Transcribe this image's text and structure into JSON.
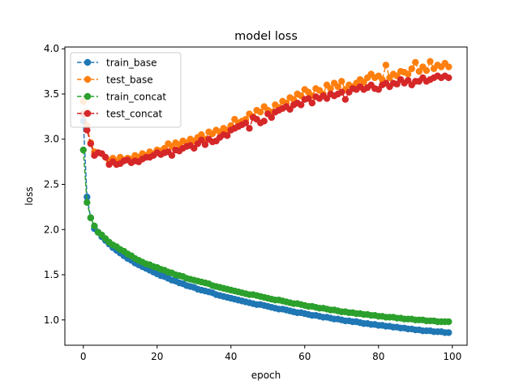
{
  "chart_data": {
    "type": "line",
    "title": "model loss",
    "xlabel": "epoch",
    "ylabel": "loss",
    "xlim": [
      -5,
      104
    ],
    "ylim": [
      0.72,
      4.02
    ],
    "xticks": [
      0,
      20,
      40,
      60,
      80,
      100
    ],
    "yticks": [
      1.0,
      1.5,
      2.0,
      2.5,
      3.0,
      3.5,
      4.0
    ],
    "legend_position": "upper-left",
    "grid": false,
    "x": [
      0,
      1,
      2,
      3,
      4,
      5,
      6,
      7,
      8,
      9,
      10,
      11,
      12,
      13,
      14,
      15,
      16,
      17,
      18,
      19,
      20,
      21,
      22,
      23,
      24,
      25,
      26,
      27,
      28,
      29,
      30,
      31,
      32,
      33,
      34,
      35,
      36,
      37,
      38,
      39,
      40,
      41,
      42,
      43,
      44,
      45,
      46,
      47,
      48,
      49,
      50,
      51,
      52,
      53,
      54,
      55,
      56,
      57,
      58,
      59,
      60,
      61,
      62,
      63,
      64,
      65,
      66,
      67,
      68,
      69,
      70,
      71,
      72,
      73,
      74,
      75,
      76,
      77,
      78,
      79,
      80,
      81,
      82,
      83,
      84,
      85,
      86,
      87,
      88,
      89,
      90,
      91,
      92,
      93,
      94,
      95,
      96,
      97,
      98,
      99
    ],
    "series": [
      {
        "name": "train_base",
        "color": "#1f77b4",
        "values": [
          3.2,
          2.36,
          2.13,
          2.01,
          1.97,
          1.92,
          1.88,
          1.84,
          1.8,
          1.77,
          1.74,
          1.71,
          1.68,
          1.66,
          1.63,
          1.61,
          1.59,
          1.57,
          1.55,
          1.53,
          1.51,
          1.49,
          1.48,
          1.46,
          1.44,
          1.43,
          1.41,
          1.4,
          1.38,
          1.37,
          1.36,
          1.34,
          1.33,
          1.32,
          1.31,
          1.3,
          1.28,
          1.27,
          1.26,
          1.25,
          1.24,
          1.23,
          1.22,
          1.21,
          1.2,
          1.19,
          1.18,
          1.17,
          1.17,
          1.16,
          1.15,
          1.14,
          1.13,
          1.12,
          1.12,
          1.11,
          1.1,
          1.09,
          1.08,
          1.08,
          1.07,
          1.06,
          1.05,
          1.05,
          1.04,
          1.03,
          1.03,
          1.02,
          1.01,
          1.01,
          1.0,
          0.99,
          0.99,
          0.98,
          0.98,
          0.97,
          0.96,
          0.96,
          0.95,
          0.95,
          0.94,
          0.94,
          0.93,
          0.93,
          0.92,
          0.92,
          0.91,
          0.91,
          0.9,
          0.9,
          0.89,
          0.89,
          0.88,
          0.88,
          0.88,
          0.87,
          0.87,
          0.87,
          0.86,
          0.86
        ]
      },
      {
        "name": "test_base",
        "color": "#ff7f0e",
        "values": [
          3.42,
          3.15,
          2.96,
          2.86,
          2.85,
          2.84,
          2.8,
          2.76,
          2.79,
          2.76,
          2.8,
          2.77,
          2.79,
          2.78,
          2.82,
          2.8,
          2.84,
          2.82,
          2.86,
          2.84,
          2.88,
          2.87,
          2.9,
          2.95,
          2.92,
          2.96,
          2.94,
          2.98,
          2.96,
          3.0,
          2.98,
          3.02,
          3.05,
          3.0,
          3.08,
          3.06,
          3.1,
          3.08,
          3.12,
          3.1,
          3.15,
          3.22,
          3.18,
          3.2,
          3.22,
          3.28,
          3.25,
          3.32,
          3.3,
          3.36,
          3.32,
          3.3,
          3.38,
          3.35,
          3.42,
          3.4,
          3.46,
          3.44,
          3.5,
          3.48,
          3.55,
          3.52,
          3.48,
          3.56,
          3.54,
          3.5,
          3.6,
          3.56,
          3.62,
          3.58,
          3.64,
          3.55,
          3.6,
          3.58,
          3.62,
          3.66,
          3.63,
          3.68,
          3.72,
          3.68,
          3.7,
          3.66,
          3.82,
          3.68,
          3.72,
          3.7,
          3.75,
          3.74,
          3.72,
          3.78,
          3.85,
          3.75,
          3.8,
          3.76,
          3.86,
          3.78,
          3.82,
          3.8,
          3.84,
          3.8
        ]
      },
      {
        "name": "train_concat",
        "color": "#2ca02c",
        "values": [
          2.88,
          2.3,
          2.13,
          2.04,
          1.97,
          1.94,
          1.9,
          1.86,
          1.83,
          1.81,
          1.78,
          1.76,
          1.73,
          1.71,
          1.68,
          1.66,
          1.64,
          1.62,
          1.61,
          1.59,
          1.58,
          1.56,
          1.55,
          1.53,
          1.52,
          1.5,
          1.49,
          1.48,
          1.46,
          1.45,
          1.44,
          1.43,
          1.42,
          1.41,
          1.4,
          1.38,
          1.37,
          1.36,
          1.35,
          1.34,
          1.33,
          1.32,
          1.31,
          1.3,
          1.29,
          1.28,
          1.28,
          1.27,
          1.26,
          1.25,
          1.24,
          1.23,
          1.22,
          1.22,
          1.21,
          1.2,
          1.19,
          1.18,
          1.18,
          1.17,
          1.16,
          1.15,
          1.15,
          1.14,
          1.13,
          1.13,
          1.12,
          1.11,
          1.11,
          1.1,
          1.09,
          1.09,
          1.08,
          1.08,
          1.07,
          1.07,
          1.06,
          1.06,
          1.05,
          1.05,
          1.04,
          1.04,
          1.03,
          1.03,
          1.03,
          1.02,
          1.02,
          1.01,
          1.01,
          1.01,
          1.0,
          1.0,
          1.0,
          0.99,
          0.99,
          0.99,
          0.98,
          0.98,
          0.98,
          0.98
        ]
      },
      {
        "name": "test_concat",
        "color": "#d62728",
        "values": [
          3.28,
          3.1,
          2.95,
          2.82,
          2.85,
          2.84,
          2.8,
          2.72,
          2.75,
          2.72,
          2.73,
          2.76,
          2.77,
          2.74,
          2.76,
          2.75,
          2.78,
          2.8,
          2.8,
          2.82,
          2.85,
          2.83,
          2.85,
          2.86,
          2.82,
          2.88,
          2.87,
          2.9,
          2.92,
          2.93,
          2.9,
          2.95,
          2.99,
          2.94,
          3.0,
          2.97,
          2.98,
          3.02,
          3.05,
          3.04,
          3.1,
          3.12,
          3.14,
          3.16,
          3.18,
          3.12,
          3.24,
          3.22,
          3.18,
          3.2,
          3.28,
          3.24,
          3.3,
          3.32,
          3.34,
          3.36,
          3.33,
          3.38,
          3.4,
          3.38,
          3.44,
          3.45,
          3.4,
          3.47,
          3.45,
          3.48,
          3.45,
          3.5,
          3.48,
          3.5,
          3.52,
          3.44,
          3.52,
          3.56,
          3.55,
          3.58,
          3.55,
          3.57,
          3.6,
          3.56,
          3.55,
          3.6,
          3.62,
          3.58,
          3.62,
          3.61,
          3.66,
          3.62,
          3.65,
          3.6,
          3.64,
          3.64,
          3.68,
          3.64,
          3.66,
          3.68,
          3.7,
          3.68,
          3.7,
          3.68
        ]
      }
    ]
  }
}
